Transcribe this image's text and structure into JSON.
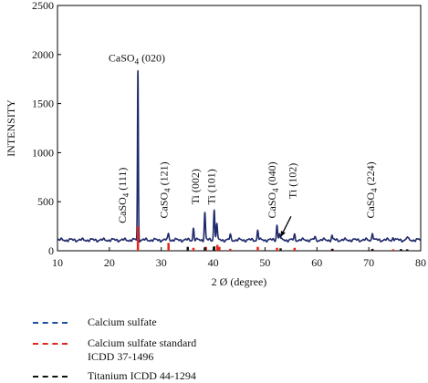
{
  "chart_data": {
    "type": "line",
    "xlabel": "2 Ø (degree)",
    "ylabel": "INTENSITY",
    "xlim": [
      10,
      80
    ],
    "ylim": [
      0,
      2500
    ],
    "xticks": [
      10,
      20,
      30,
      40,
      50,
      60,
      70,
      80
    ],
    "yticks": [
      0,
      500,
      1000,
      1500,
      2000,
      2500
    ],
    "grid": false,
    "legend_position": "bottom",
    "series": [
      {
        "name": "Calcium sulfate",
        "color": "#1f2a6b",
        "baseline": 110,
        "peaks": [
          {
            "x": 25.5,
            "y": 1840
          },
          {
            "x": 31.4,
            "y": 180
          },
          {
            "x": 36.2,
            "y": 230
          },
          {
            "x": 38.4,
            "y": 390
          },
          {
            "x": 40.2,
            "y": 420
          },
          {
            "x": 40.7,
            "y": 280
          },
          {
            "x": 43.3,
            "y": 160
          },
          {
            "x": 48.6,
            "y": 210
          },
          {
            "x": 52.3,
            "y": 270
          },
          {
            "x": 52.8,
            "y": 180
          },
          {
            "x": 55.7,
            "y": 160
          },
          {
            "x": 59.6,
            "y": 140
          },
          {
            "x": 62.9,
            "y": 150
          },
          {
            "x": 70.7,
            "y": 190
          },
          {
            "x": 74.7,
            "y": 140
          },
          {
            "x": 77.4,
            "y": 140
          }
        ]
      },
      {
        "name": "Calcium sulfate standard ICDD 37-1496",
        "color": "#e0261d",
        "sticks": [
          {
            "x": 25.5,
            "y": 250
          },
          {
            "x": 31.4,
            "y": 80
          },
          {
            "x": 36.2,
            "y": 30
          },
          {
            "x": 38.6,
            "y": 40
          },
          {
            "x": 40.8,
            "y": 60
          },
          {
            "x": 41.2,
            "y": 40
          },
          {
            "x": 43.3,
            "y": 20
          },
          {
            "x": 48.6,
            "y": 40
          },
          {
            "x": 52.3,
            "y": 30
          },
          {
            "x": 55.7,
            "y": 30
          },
          {
            "x": 62.9,
            "y": 20
          },
          {
            "x": 70.7,
            "y": 20
          },
          {
            "x": 74.7,
            "y": 15
          },
          {
            "x": 77.4,
            "y": 15
          }
        ]
      },
      {
        "name": "Titanium ICDD 44-1294",
        "color": "#111111",
        "sticks": [
          {
            "x": 35.1,
            "y": 40
          },
          {
            "x": 38.4,
            "y": 35
          },
          {
            "x": 40.2,
            "y": 45
          },
          {
            "x": 53.0,
            "y": 25
          },
          {
            "x": 63.0,
            "y": 20
          },
          {
            "x": 70.7,
            "y": 18
          },
          {
            "x": 76.2,
            "y": 18
          },
          {
            "x": 77.4,
            "y": 15
          }
        ]
      }
    ],
    "annotations": [
      {
        "formula": "CaSO",
        "sub": "4",
        "hkl": "(020)",
        "x": 25.3,
        "y": 1930,
        "rotate": 0
      },
      {
        "formula": "CaSO",
        "sub": "4",
        "hkl": "(111)",
        "x": 23.2,
        "y": 280,
        "rotate": -90
      },
      {
        "formula": "CaSO",
        "sub": "4",
        "hkl": "(121)",
        "x": 31.2,
        "y": 330,
        "rotate": -90
      },
      {
        "formula": "Ti",
        "sub": "",
        "hkl": "(002)",
        "x": 37.3,
        "y": 470,
        "rotate": -90
      },
      {
        "formula": "Ti",
        "sub": "",
        "hkl": "(101)",
        "x": 40.3,
        "y": 470,
        "rotate": -90
      },
      {
        "formula": "CaSO",
        "sub": "4",
        "hkl": "(040)",
        "x": 52.0,
        "y": 330,
        "rotate": -90
      },
      {
        "formula": "Ti",
        "sub": "",
        "hkl": "(102)",
        "x": 56.0,
        "y": 530,
        "rotate": -90
      },
      {
        "formula": "CaSO",
        "sub": "4",
        "hkl": "(224)",
        "x": 71.0,
        "y": 330,
        "rotate": -90
      }
    ],
    "arrow": {
      "from": {
        "x": 55.0,
        "y": 350
      },
      "to": {
        "x": 53.0,
        "y": 140
      }
    }
  },
  "legend": [
    {
      "label": "Calcium sulfate",
      "color": "#1f4ea0"
    },
    {
      "label": "Calcium sulfate standard",
      "label2": "ICDD 37-1496",
      "color": "#e0261d"
    },
    {
      "label": "Titanium ICDD 44-1294",
      "color": "#111111"
    }
  ]
}
